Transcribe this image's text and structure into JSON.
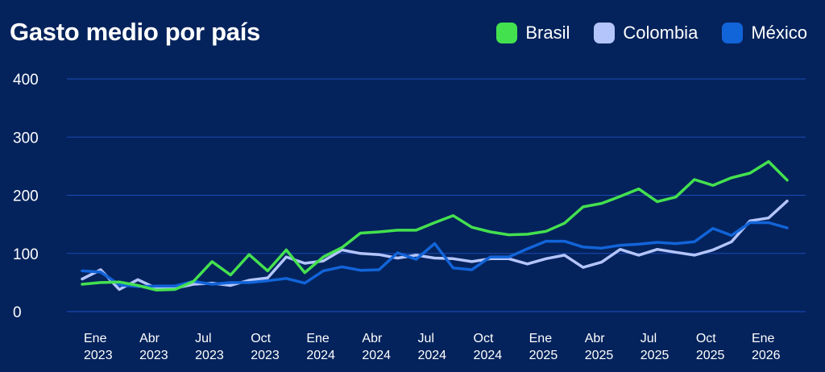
{
  "chart_data": {
    "type": "line",
    "title": "Gasto medio por país",
    "xlabel": "",
    "ylabel": "",
    "ylim": [
      0,
      400
    ],
    "yticks": [
      0,
      100,
      200,
      300,
      400
    ],
    "grid": true,
    "legend_position": "top-right",
    "x_tick_labels": [
      [
        "Ene",
        "2023"
      ],
      [
        "Abr",
        "2023"
      ],
      [
        "Jul",
        "2023"
      ],
      [
        "Oct",
        "2023"
      ],
      [
        "Ene",
        "2024"
      ],
      [
        "Abr",
        "2024"
      ],
      [
        "Jul",
        "2024"
      ],
      [
        "Oct",
        "2024"
      ],
      [
        "Ene",
        "2025"
      ],
      [
        "Abr",
        "2025"
      ],
      [
        "Jul",
        "2025"
      ],
      [
        "Oct",
        "2025"
      ],
      [
        "Ene",
        "2026"
      ]
    ],
    "series": [
      {
        "name": "Brasil",
        "color": "#44e14f",
        "values": [
          47,
          50,
          51,
          45,
          37,
          38,
          52,
          86,
          63,
          98,
          70,
          106,
          67,
          94,
          110,
          135,
          137,
          140,
          140,
          153,
          165,
          145,
          137,
          132,
          133,
          138,
          152,
          180,
          186,
          198,
          211,
          189,
          197,
          227,
          217,
          230,
          238,
          258,
          226
        ]
      },
      {
        "name": "Colombia",
        "color": "#b4c5fb",
        "values": [
          56,
          72,
          38,
          55,
          40,
          40,
          47,
          49,
          45,
          54,
          58,
          94,
          83,
          87,
          106,
          100,
          98,
          92,
          97,
          92,
          91,
          86,
          91,
          91,
          82,
          91,
          97,
          76,
          85,
          107,
          97,
          107,
          102,
          97,
          106,
          120,
          156,
          161,
          190
        ]
      },
      {
        "name": "México",
        "color": "#1264d9",
        "values": [
          70,
          68,
          46,
          43,
          44,
          44,
          52,
          47,
          50,
          50,
          53,
          57,
          49,
          70,
          77,
          71,
          72,
          101,
          90,
          117,
          75,
          72,
          94,
          94,
          108,
          121,
          121,
          111,
          109,
          114,
          116,
          119,
          117,
          120,
          143,
          131,
          153,
          153,
          144
        ]
      }
    ]
  }
}
